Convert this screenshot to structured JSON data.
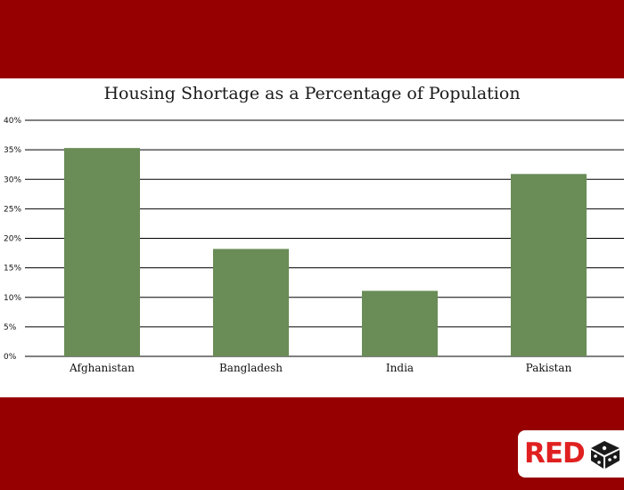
{
  "chart_data": {
    "type": "bar",
    "title": "Housing Shortage as a Percentage of Population",
    "xlabel": "",
    "ylabel": "",
    "categories": [
      "Afghanistan",
      "Bangladesh",
      "India",
      "Pakistan"
    ],
    "values": [
      35.3,
      18.2,
      11.1,
      30.9
    ],
    "ylim": [
      0,
      40
    ],
    "yticks": [
      "0%",
      "5%",
      "10%",
      "15%",
      "20%",
      "25%",
      "30%",
      "35%",
      "40%"
    ],
    "grid": true,
    "bar_color": "#6a8c57"
  },
  "branding": {
    "logo_text": "RED",
    "accent_color": "#e02020",
    "background_color": "#960000"
  }
}
